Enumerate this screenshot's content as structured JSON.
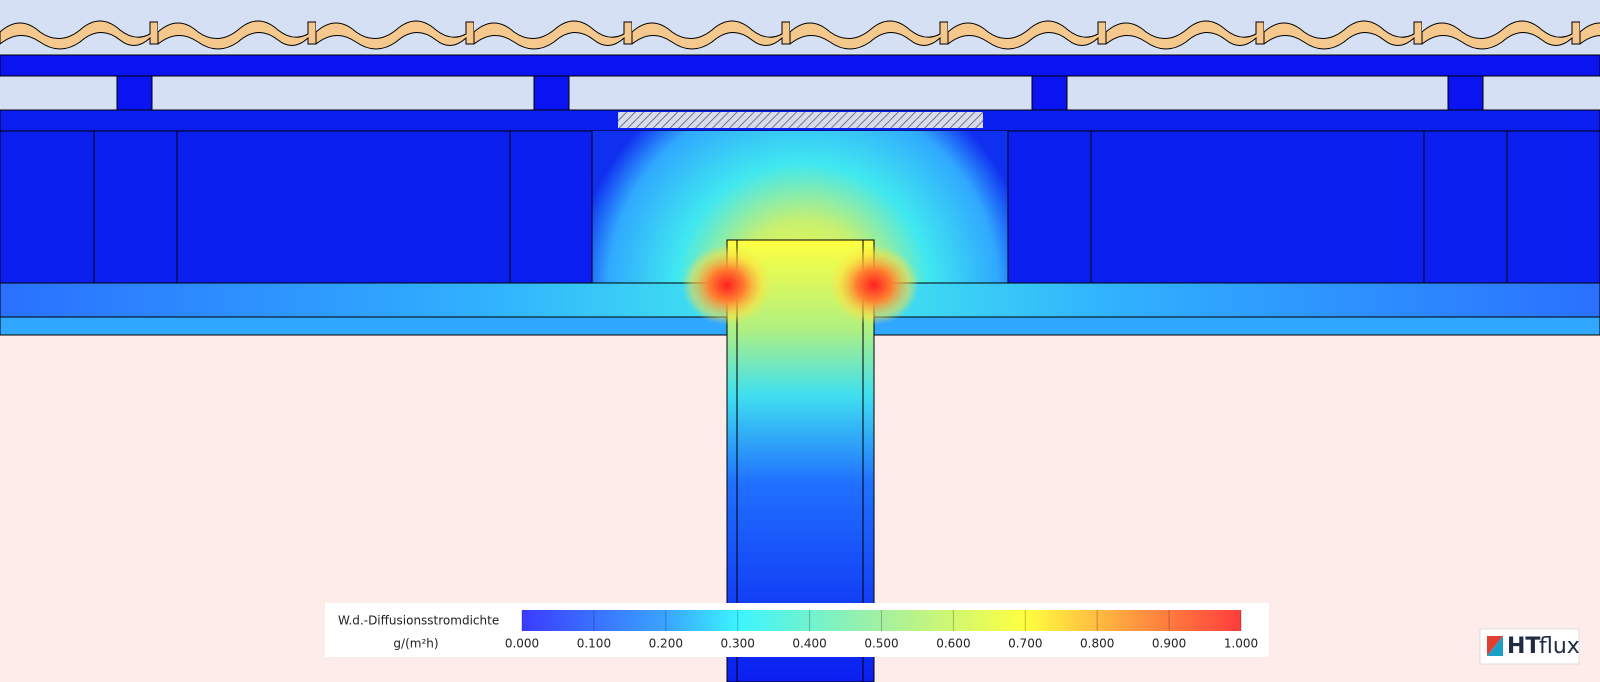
{
  "legend": {
    "title": "W.d.-Diffusionsstromdichte",
    "unit": "g/(m²h)",
    "range": [
      0,
      1
    ],
    "ticks": [
      {
        "value": 0,
        "label": "0.000"
      },
      {
        "value": 0.1,
        "label": "0.100"
      },
      {
        "value": 0.2,
        "label": "0.200"
      },
      {
        "value": 0.3,
        "label": "0.300"
      },
      {
        "value": 0.4,
        "label": "0.400"
      },
      {
        "value": 0.5,
        "label": "0.500"
      },
      {
        "value": 0.6,
        "label": "0.600"
      },
      {
        "value": 0.7,
        "label": "0.700"
      },
      {
        "value": 0.8,
        "label": "0.800"
      },
      {
        "value": 0.9,
        "label": "0.900"
      },
      {
        "value": 1,
        "label": "1.000"
      }
    ]
  },
  "logo": {
    "brand": "HT",
    "suffix": "flux"
  }
}
